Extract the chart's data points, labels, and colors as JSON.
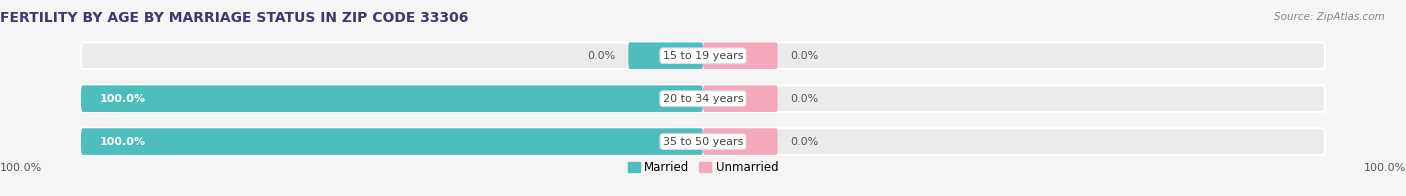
{
  "title": "FERTILITY BY AGE BY MARRIAGE STATUS IN ZIP CODE 33306",
  "source": "Source: ZipAtlas.com",
  "categories": [
    "15 to 19 years",
    "20 to 34 years",
    "35 to 50 years"
  ],
  "married_values": [
    0.0,
    100.0,
    100.0
  ],
  "unmarried_values": [
    0.0,
    0.0,
    0.0
  ],
  "married_color": "#4dbdbd",
  "unmarried_color": "#f5a8bc",
  "bar_bg_color": "#ebebeb",
  "label_left_married": [
    "0.0%",
    "100.0%",
    "100.0%"
  ],
  "label_right_unmarried": [
    "0.0%",
    "0.0%",
    "0.0%"
  ],
  "axis_left_label": "100.0%",
  "axis_right_label": "100.0%",
  "title_fontsize": 10,
  "label_fontsize": 8,
  "cat_fontsize": 8,
  "bar_height": 0.62,
  "background_color": "#f5f5f5",
  "title_color": "#3a3a6e",
  "label_color_dark": "#555555",
  "label_color_white": "#ffffff"
}
